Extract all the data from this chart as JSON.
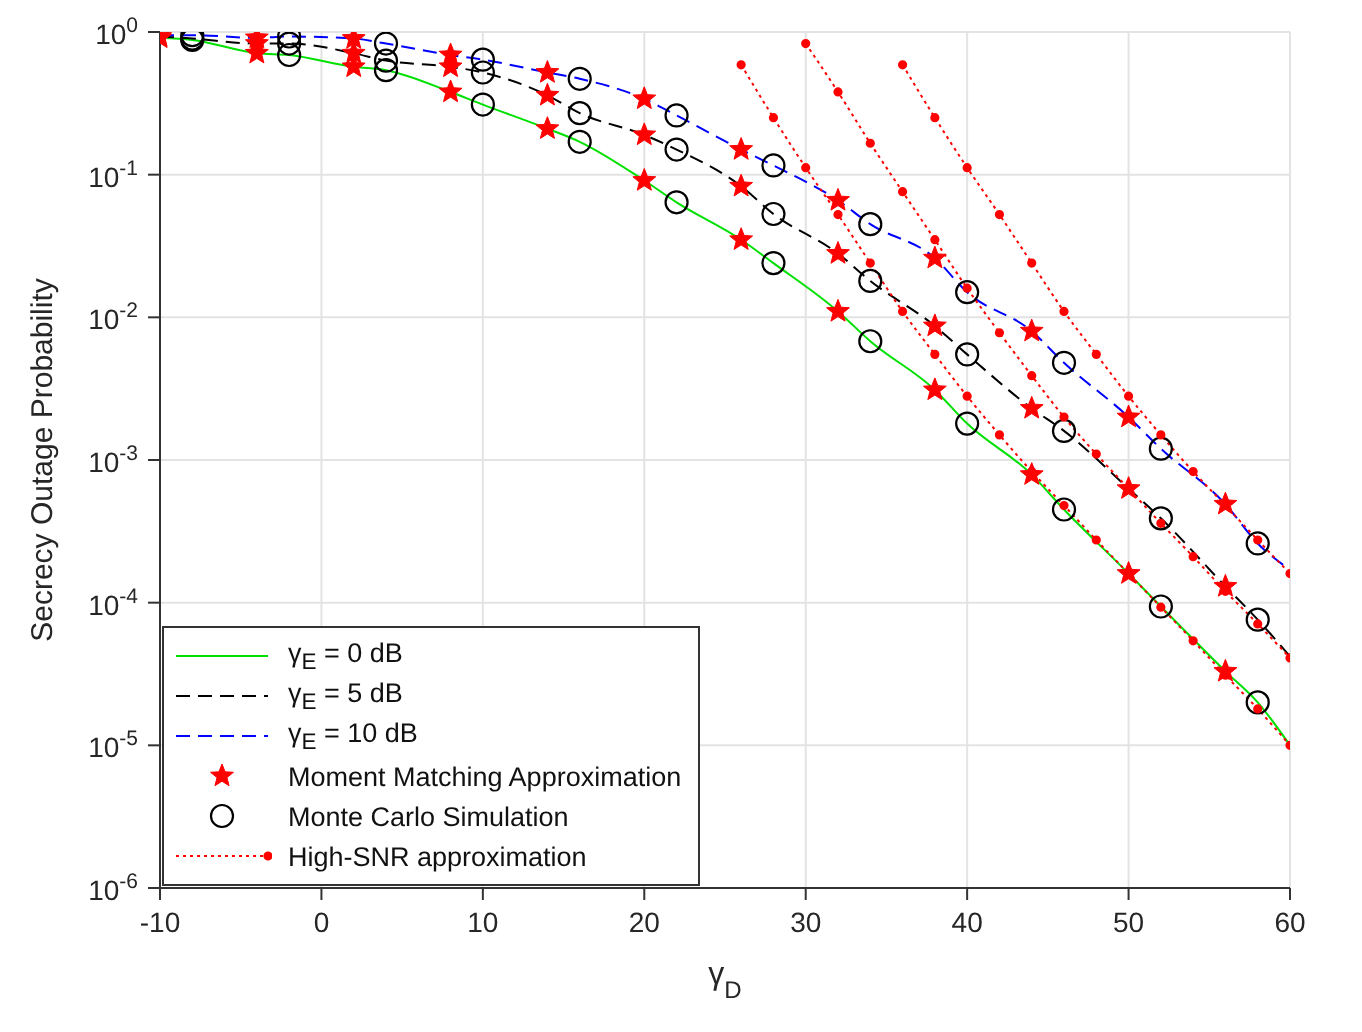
{
  "chart_data": {
    "type": "line",
    "xlabel": "γ$_{D}$",
    "ylabel": "Secrecy Outage Probability",
    "xlim": [
      -10,
      60
    ],
    "xticks": [
      -10,
      0,
      10,
      20,
      30,
      40,
      50,
      60
    ],
    "ylim": [
      1e-06,
      1
    ],
    "yticks": [
      {
        "value": 1e-06,
        "label": "10$^{-6}$"
      },
      {
        "value": 1e-05,
        "label": "10$^{-5}$"
      },
      {
        "value": 0.0001,
        "label": "10$^{-4}$"
      },
      {
        "value": 0.001,
        "label": "10$^{-3}$"
      },
      {
        "value": 0.01,
        "label": "10$^{-2}$"
      },
      {
        "value": 0.1,
        "label": "10$^{-1}$"
      },
      {
        "value": 1,
        "label": "10$^{0}$"
      }
    ],
    "log": "y",
    "grid": true,
    "legend": "bottom left",
    "series": [
      {
        "name": "γ$_{E}$ = 0 dB",
        "color": "#00e000",
        "line_style": "solid",
        "marker": "none",
        "x": [
          -10,
          -8,
          -4,
          -2,
          2,
          4,
          8,
          10,
          14,
          16,
          20,
          22,
          26,
          28,
          32,
          34,
          38,
          40,
          44,
          46,
          50,
          52,
          56,
          58,
          60
        ],
        "values": [
          0.91,
          0.88,
          0.71,
          0.69,
          0.57,
          0.54,
          0.38,
          0.31,
          0.21,
          0.17,
          0.091,
          0.064,
          0.035,
          0.024,
          0.011,
          0.0068,
          0.0031,
          0.0018,
          0.00079,
          0.00045,
          0.00016,
          9.4e-05,
          3.3e-05,
          2e-05,
          1e-05
        ]
      },
      {
        "name": "γ$_{E}$ = 5 dB",
        "color": "#000000",
        "line_style": "dashed",
        "marker": "none",
        "x": [
          -10,
          -8,
          -4,
          -2,
          2,
          4,
          8,
          10,
          14,
          16,
          20,
          22,
          26,
          28,
          32,
          34,
          38,
          40,
          44,
          46,
          50,
          52,
          56,
          58,
          60
        ],
        "values": [
          0.93,
          0.9,
          0.83,
          0.83,
          0.71,
          0.63,
          0.57,
          0.52,
          0.36,
          0.27,
          0.19,
          0.15,
          0.083,
          0.053,
          0.028,
          0.018,
          0.0087,
          0.0055,
          0.0023,
          0.0016,
          0.00063,
          0.00039,
          0.00013,
          7.6e-05,
          4.2e-05
        ]
      },
      {
        "name": "γ$_{E}$ = 10 dB",
        "color": "#0000ff",
        "line_style": "dashed",
        "marker": "none",
        "x": [
          -10,
          -8,
          -4,
          -2,
          2,
          4,
          8,
          10,
          14,
          16,
          20,
          22,
          26,
          28,
          32,
          34,
          38,
          40,
          44,
          46,
          50,
          52,
          56,
          58,
          60
        ],
        "values": [
          0.95,
          0.95,
          0.91,
          0.93,
          0.9,
          0.83,
          0.69,
          0.64,
          0.52,
          0.47,
          0.34,
          0.26,
          0.15,
          0.116,
          0.066,
          0.045,
          0.026,
          0.015,
          0.008,
          0.0048,
          0.002,
          0.0012,
          0.00049,
          0.00026,
          0.00017
        ]
      },
      {
        "name": "Moment Matching Approximation",
        "type": "scatter",
        "color": "#ff0000",
        "marker": "star",
        "x": [
          -10,
          -4,
          2,
          8,
          14,
          20,
          26,
          32,
          38,
          44,
          50,
          56,
          -10,
          -4,
          2,
          8,
          14,
          20,
          26,
          32,
          38,
          44,
          50,
          56,
          -4,
          2,
          8,
          14,
          20,
          26,
          32,
          38,
          44,
          50,
          56
        ],
        "values": [
          0.91,
          0.71,
          0.57,
          0.38,
          0.21,
          0.091,
          0.035,
          0.011,
          0.0031,
          0.00079,
          0.00016,
          3.3e-05,
          0.93,
          0.83,
          0.71,
          0.57,
          0.36,
          0.19,
          0.083,
          0.028,
          0.0087,
          0.0023,
          0.00063,
          0.00013,
          0.91,
          0.9,
          0.69,
          0.52,
          0.34,
          0.15,
          0.066,
          0.026,
          0.008,
          0.002,
          0.00049
        ]
      },
      {
        "name": "Monte Carlo Simulation",
        "type": "scatter",
        "color": "#000000",
        "marker": "circle",
        "x": [
          -8,
          -2,
          4,
          10,
          16,
          22,
          28,
          34,
          40,
          46,
          52,
          58,
          -8,
          -2,
          4,
          10,
          16,
          22,
          28,
          34,
          40,
          46,
          52,
          58,
          -8,
          -2,
          4,
          10,
          16,
          22,
          28,
          34,
          40,
          46,
          52,
          58
        ],
        "values": [
          0.88,
          0.69,
          0.54,
          0.31,
          0.17,
          0.064,
          0.024,
          0.0068,
          0.0018,
          0.00045,
          9.4e-05,
          2e-05,
          0.9,
          0.83,
          0.63,
          0.52,
          0.27,
          0.15,
          0.053,
          0.018,
          0.0055,
          0.0016,
          0.00039,
          7.6e-05,
          0.95,
          0.93,
          0.83,
          0.64,
          0.47,
          0.26,
          0.116,
          0.045,
          0.015,
          0.0048,
          0.0012,
          0.00026
        ]
      },
      {
        "name": "High-SNR approximation",
        "color": "#ff0000",
        "line_style": "dotted",
        "marker": "circle",
        "x": [
          26,
          28,
          30,
          32,
          34,
          36,
          38,
          40,
          42,
          44,
          46,
          48,
          50,
          52,
          54,
          56,
          58,
          60
        ],
        "values": [
          0.589,
          0.251,
          0.112,
          0.0525,
          0.024,
          0.011,
          0.0055,
          0.0028,
          0.0015,
          0.00083,
          0.00048,
          0.000275,
          0.00016,
          9.3e-05,
          5.4e-05,
          3.1e-05,
          1.8e-05,
          1e-05
        ]
      },
      {
        "color": "#ff0000",
        "line_style": "dotted",
        "marker": "circle",
        "x": [
          30,
          32,
          34,
          36,
          38,
          40,
          42,
          44,
          46,
          48,
          50,
          52,
          54,
          56,
          58,
          60
        ],
        "values": [
          0.83,
          0.38,
          0.166,
          0.076,
          0.035,
          0.016,
          0.0078,
          0.0039,
          0.002,
          0.0011,
          0.00063,
          0.00036,
          0.00021,
          0.00012,
          7.1e-05,
          4.1e-05
        ]
      },
      {
        "color": "#ff0000",
        "line_style": "dotted",
        "marker": "circle",
        "x": [
          36,
          38,
          40,
          42,
          44,
          46,
          48,
          50,
          52,
          54,
          56,
          58,
          60
        ],
        "values": [
          0.589,
          0.251,
          0.112,
          0.0525,
          0.024,
          0.011,
          0.0055,
          0.0028,
          0.0015,
          0.00083,
          0.00048,
          0.000275,
          0.00016
        ]
      }
    ]
  }
}
